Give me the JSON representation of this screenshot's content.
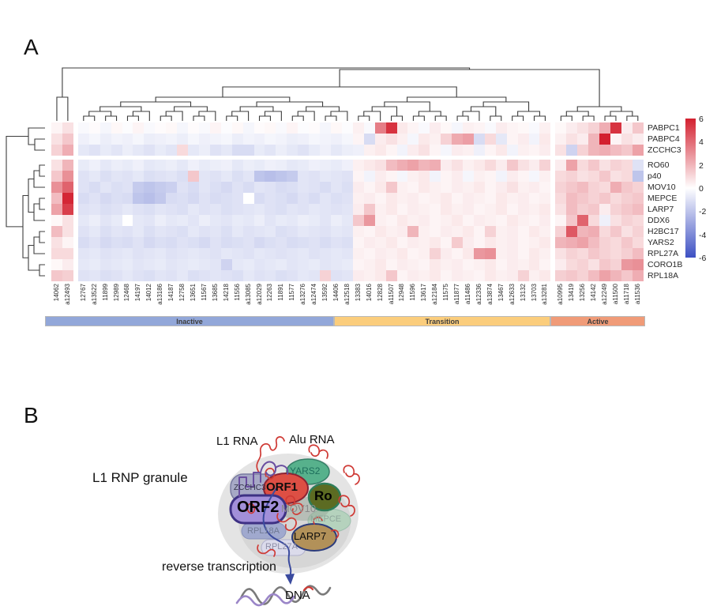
{
  "panel_a": {
    "label": "A",
    "chart_data": {
      "type": "heatmap",
      "rows": [
        "PABPC1",
        "PABPC4",
        "ZCCHC3",
        "RO60",
        "p40",
        "MOV10",
        "MEPCE",
        "LARP7",
        "DDX6",
        "H2BC17",
        "YARS2",
        "RPL27A",
        "CORO1B",
        "RPL18A"
      ],
      "columns": [
        "14062",
        "a12493",
        "12767",
        "a13522",
        "11899",
        "12989",
        "12468",
        "14197",
        "14012",
        "a13186",
        "14187",
        "12758",
        "13651",
        "11567",
        "13685",
        "14218",
        "11556",
        "a13085",
        "a12029",
        "12263",
        "11891",
        "11577",
        "a13276",
        "a12474",
        "13592",
        "14406",
        "a12518",
        "13383",
        "14016",
        "12828",
        "a11507",
        "12948",
        "11596",
        "13617",
        "a12184",
        "11575",
        "a11877",
        "a11486",
        "a12336",
        "a13874",
        "13467",
        "a12633",
        "13132",
        "13703",
        "a13281",
        "a10995",
        "13419",
        "13256",
        "14142",
        "a12249",
        "a11500",
        "a11718",
        "a11536"
      ],
      "value_range": [
        -6,
        6
      ],
      "matrix": [
        [
          0.3,
          0.8,
          -0.2,
          0.1,
          -0.3,
          0.2,
          -0.1,
          0.3,
          -0.2,
          0.1,
          0.2,
          -0.3,
          0.1,
          -0.2,
          0.3,
          -0.1,
          0.2,
          -0.3,
          0.1,
          0.2,
          -0.2,
          0.3,
          -0.1,
          0.1,
          -0.3,
          0.2,
          -0.1,
          0.4,
          -0.2,
          3.5,
          5.5,
          0.6,
          0.3,
          -0.2,
          0.5,
          0.2,
          -0.3,
          0.4,
          0.3,
          -0.2,
          0.5,
          0.3,
          0.2,
          -0.2,
          0.4,
          0.2,
          0.5,
          0.8,
          1.2,
          2.2,
          5.5,
          0.5,
          1.5
        ],
        [
          0.8,
          1.5,
          -0.5,
          -0.3,
          -0.6,
          -0.4,
          -0.5,
          -0.3,
          -0.6,
          -0.5,
          -0.4,
          -0.6,
          -0.3,
          -0.5,
          -0.4,
          -0.3,
          -0.6,
          -0.4,
          -0.5,
          -0.3,
          -0.4,
          -0.6,
          -0.5,
          -0.3,
          -0.4,
          -0.5,
          -0.3,
          0.3,
          -1.2,
          0.5,
          0.8,
          0.4,
          -0.3,
          0.6,
          0.4,
          1.2,
          2.3,
          2.6,
          -1.2,
          1.0,
          -0.8,
          0.3,
          0.5,
          -0.4,
          0.6,
          0.4,
          0.8,
          0.5,
          2.0,
          6.0,
          0.3,
          0.8,
          0.5
        ],
        [
          1.2,
          2.2,
          -0.8,
          -1.0,
          -0.7,
          -0.9,
          -0.6,
          -0.8,
          -1.0,
          -0.7,
          -0.9,
          1.0,
          -0.8,
          -0.6,
          -1.0,
          -0.8,
          -1.2,
          -1.2,
          -0.7,
          -0.9,
          -0.6,
          -0.8,
          -1.0,
          -0.7,
          -0.5,
          -0.8,
          -0.6,
          -0.5,
          0.4,
          0.6,
          0.3,
          -0.4,
          0.5,
          0.8,
          0.3,
          -0.3,
          0.5,
          0.4,
          -0.5,
          0.3,
          0.6,
          -0.4,
          0.4,
          0.3,
          0.5,
          0.8,
          -1.5,
          1.2,
          2.0,
          2.2,
          1.8,
          1.5,
          2.5
        ],
        [
          0.8,
          2.0,
          -0.7,
          -0.5,
          -0.8,
          -0.6,
          -0.7,
          -0.5,
          -0.8,
          -0.7,
          -0.6,
          -0.8,
          -0.5,
          -0.7,
          -0.6,
          -0.5,
          -0.8,
          -0.6,
          -0.7,
          -0.5,
          -0.6,
          -0.8,
          -0.7,
          -0.5,
          -0.6,
          -0.7,
          -0.5,
          0.4,
          0.6,
          0.8,
          1.8,
          2.2,
          2.5,
          2.0,
          2.2,
          0.5,
          0.8,
          0.4,
          0.6,
          1.0,
          0.5,
          1.5,
          0.8,
          0.5,
          1.2,
          0.5,
          2.5,
          1.0,
          1.5,
          0.8,
          1.2,
          1.0,
          -1.0
        ],
        [
          1.5,
          3.0,
          -1.0,
          -0.8,
          -1.1,
          -0.9,
          -1.0,
          -0.8,
          -1.1,
          -1.0,
          -0.9,
          -1.1,
          1.5,
          -0.9,
          -1.0,
          -0.8,
          -1.1,
          -0.9,
          -2.0,
          -2.2,
          -2.0,
          -1.8,
          -0.9,
          -1.0,
          -0.8,
          -0.9,
          -1.0,
          0.3,
          -0.4,
          0.5,
          0.3,
          -0.3,
          0.4,
          0.6,
          -0.4,
          0.3,
          0.5,
          -0.3,
          0.4,
          0.3,
          -0.4,
          0.5,
          0.3,
          -0.3,
          0.4,
          1.0,
          1.2,
          0.8,
          1.0,
          1.5,
          0.8,
          1.0,
          -2.0
        ],
        [
          3.0,
          4.2,
          -1.0,
          -1.2,
          -0.9,
          -1.1,
          -1.0,
          -1.8,
          -2.0,
          -1.8,
          -1.6,
          -1.0,
          -1.2,
          -0.9,
          -1.1,
          -1.3,
          -1.0,
          -1.2,
          -0.9,
          -1.0,
          -1.2,
          -1.1,
          -0.9,
          -1.0,
          -1.2,
          -0.9,
          -1.1,
          0.5,
          0.3,
          0.6,
          1.5,
          0.4,
          0.3,
          0.6,
          0.4,
          0.3,
          0.5,
          0.4,
          0.6,
          0.3,
          0.5,
          0.8,
          0.4,
          0.5,
          0.3,
          1.2,
          1.5,
          1.8,
          1.2,
          1.0,
          2.2,
          1.5,
          1.2
        ],
        [
          1.8,
          5.8,
          -1.2,
          -1.0,
          -1.3,
          -1.1,
          -1.2,
          -2.0,
          -2.2,
          -1.9,
          -1.2,
          -1.1,
          -1.3,
          -1.0,
          -1.2,
          -1.1,
          -1.0,
          0.0,
          -1.2,
          -1.0,
          -1.1,
          -1.3,
          -1.0,
          -1.2,
          -0.9,
          -1.1,
          -1.0,
          0.4,
          0.5,
          0.3,
          0.6,
          0.4,
          0.5,
          0.3,
          0.4,
          0.6,
          0.3,
          0.5,
          0.4,
          0.3,
          0.6,
          0.4,
          0.5,
          0.3,
          0.4,
          1.0,
          1.8,
          1.5,
          1.2,
          1.5,
          1.0,
          1.3,
          1.5
        ],
        [
          2.5,
          5.2,
          -1.0,
          -0.9,
          -1.1,
          -1.0,
          -0.8,
          -1.0,
          -1.1,
          -0.9,
          -1.0,
          -1.1,
          -0.8,
          -1.0,
          -0.9,
          -1.1,
          -1.0,
          -0.9,
          -0.8,
          -1.0,
          -1.1,
          -0.9,
          -1.0,
          -0.8,
          -0.9,
          -1.0,
          -0.9,
          0.5,
          1.5,
          0.4,
          0.6,
          0.3,
          0.5,
          0.4,
          0.3,
          0.6,
          0.4,
          0.5,
          0.3,
          0.4,
          0.6,
          0.3,
          0.5,
          0.4,
          0.6,
          0.8,
          1.8,
          1.3,
          1.5,
          0.5,
          1.2,
          1.5,
          1.8
        ],
        [
          0.2,
          0.8,
          -0.8,
          -0.6,
          -0.9,
          -0.7,
          0.0,
          -0.8,
          -0.9,
          -0.6,
          -0.8,
          -0.7,
          -0.9,
          -0.6,
          -0.8,
          -0.9,
          -0.7,
          -0.8,
          -0.6,
          -0.9,
          -0.7,
          -0.8,
          -0.6,
          -0.7,
          -0.9,
          -0.6,
          -0.8,
          1.5,
          2.8,
          0.4,
          0.3,
          0.6,
          0.4,
          0.5,
          0.3,
          0.4,
          0.6,
          0.3,
          0.5,
          0.4,
          0.3,
          0.6,
          0.4,
          0.3,
          0.5,
          0.3,
          1.5,
          4.2,
          1.0,
          -0.5,
          0.8,
          1.2,
          1.0
        ],
        [
          1.8,
          0.8,
          -1.0,
          -0.8,
          -1.1,
          -0.9,
          -1.0,
          -0.8,
          -1.1,
          -0.9,
          -1.0,
          -1.1,
          -0.8,
          -1.0,
          -0.9,
          -1.1,
          -0.8,
          -1.0,
          -0.9,
          -0.8,
          -1.1,
          -1.0,
          -0.8,
          -0.9,
          -1.0,
          -0.8,
          -0.9,
          0.4,
          0.3,
          0.6,
          0.4,
          0.5,
          2.0,
          0.4,
          0.3,
          0.5,
          0.4,
          0.6,
          0.3,
          1.2,
          0.4,
          0.5,
          0.3,
          0.6,
          0.4,
          1.2,
          4.5,
          2.0,
          2.2,
          1.0,
          1.5,
          0.8,
          1.2
        ],
        [
          0.8,
          0.3,
          -1.2,
          -1.0,
          -1.3,
          -1.1,
          -1.2,
          -1.0,
          -1.3,
          -1.1,
          -1.2,
          -1.0,
          -1.1,
          -1.3,
          -1.0,
          -1.2,
          -1.1,
          -1.0,
          -1.3,
          -1.1,
          -1.0,
          -1.2,
          -1.1,
          -1.0,
          -1.2,
          -1.0,
          -1.1,
          0.3,
          0.5,
          0.4,
          0.6,
          0.3,
          0.5,
          0.4,
          0.6,
          0.3,
          1.4,
          0.5,
          0.3,
          0.6,
          0.4,
          0.5,
          0.3,
          0.4,
          0.6,
          2.0,
          2.2,
          2.5,
          1.8,
          1.2,
          1.0,
          1.5,
          1.0
        ],
        [
          1.0,
          1.0,
          -0.9,
          -0.8,
          -1.0,
          -0.9,
          -0.8,
          -1.0,
          -0.9,
          -0.8,
          -1.0,
          -0.9,
          -0.8,
          -0.9,
          -1.0,
          -0.8,
          -0.9,
          -1.0,
          -0.8,
          -0.9,
          -1.0,
          -0.9,
          -0.8,
          -1.0,
          -0.9,
          -0.8,
          -0.9,
          0.4,
          0.3,
          0.5,
          0.4,
          0.6,
          0.3,
          0.4,
          1.2,
          0.5,
          0.3,
          0.6,
          2.8,
          3.0,
          0.4,
          0.5,
          0.3,
          0.6,
          0.4,
          0.8,
          1.2,
          1.0,
          1.5,
          1.2,
          1.0,
          1.3,
          1.8
        ],
        [
          0.2,
          0.5,
          -0.8,
          -0.7,
          -0.9,
          -0.8,
          -0.7,
          -0.9,
          -0.8,
          -0.7,
          -0.9,
          -0.8,
          -0.7,
          -0.8,
          -0.9,
          -1.5,
          -0.8,
          -0.7,
          -0.9,
          -0.8,
          -0.7,
          -0.9,
          -0.8,
          -0.7,
          -0.9,
          -0.8,
          -0.7,
          0.3,
          0.4,
          0.6,
          0.3,
          0.5,
          0.4,
          0.3,
          0.6,
          0.4,
          0.5,
          0.3,
          0.4,
          0.6,
          0.3,
          0.5,
          0.4,
          0.6,
          0.3,
          0.5,
          1.0,
          1.2,
          0.8,
          1.5,
          1.2,
          2.8,
          3.0
        ],
        [
          1.5,
          1.3,
          -1.0,
          -0.9,
          -1.1,
          -1.0,
          -0.8,
          -1.0,
          -1.1,
          -0.9,
          -1.0,
          -0.8,
          -1.1,
          -1.0,
          -0.9,
          -1.0,
          -1.1,
          -0.8,
          -1.0,
          -0.9,
          -1.1,
          -1.0,
          -0.8,
          -0.9,
          1.2,
          -1.0,
          -0.9,
          0.5,
          0.4,
          0.6,
          1.5,
          0.3,
          0.5,
          0.4,
          0.6,
          0.3,
          0.5,
          0.4,
          0.3,
          0.6,
          0.4,
          0.5,
          1.2,
          0.4,
          0.6,
          1.3,
          1.5,
          1.2,
          1.8,
          2.5,
          2.0,
          1.5,
          2.2
        ]
      ],
      "colorbar": {
        "ticks": [
          "6",
          "4",
          "2",
          "0",
          "-2",
          "-4",
          "-6"
        ],
        "max_color": "#d3202f",
        "mid_color": "#ffffff",
        "min_color": "#3d50c3"
      },
      "groups": [
        {
          "label": "Inactive",
          "color": "#92a7d9"
        },
        {
          "label": "Transition",
          "color": "#fbcd7c"
        },
        {
          "label": "Active",
          "color": "#f09b78"
        }
      ]
    }
  },
  "panel_b": {
    "label": "B",
    "title": "L1 RNP granule",
    "l1_rna_label": "L1 RNA",
    "alu_rna_label": "Alu RNA",
    "process_label": "reverse transcription",
    "dna_label": "DNA",
    "components": {
      "zcchc3": {
        "label": "ZCCHC3",
        "color": "#a7a9c6"
      },
      "orf1": {
        "label": "ORF1",
        "color": "#dd4f44"
      },
      "yars2": {
        "label": "YARS2",
        "color": "#57b18c"
      },
      "ro": {
        "label": "Ro",
        "color": "#5c6b22"
      },
      "orf2": {
        "label": "ORF2",
        "color": "#a28fd9"
      },
      "mov10": {
        "label": "MOV10",
        "color": "#93a193"
      },
      "mepce": {
        "label": "MEPCE",
        "color": "#b5d2bd"
      },
      "rpl18a": {
        "label": "RPL18A",
        "color": "#97a2cd"
      },
      "larp7": {
        "label": "LARP7",
        "color": "#b29159"
      },
      "rpl27a": {
        "label": "RPL27A",
        "color": "#dcdcee"
      }
    }
  }
}
